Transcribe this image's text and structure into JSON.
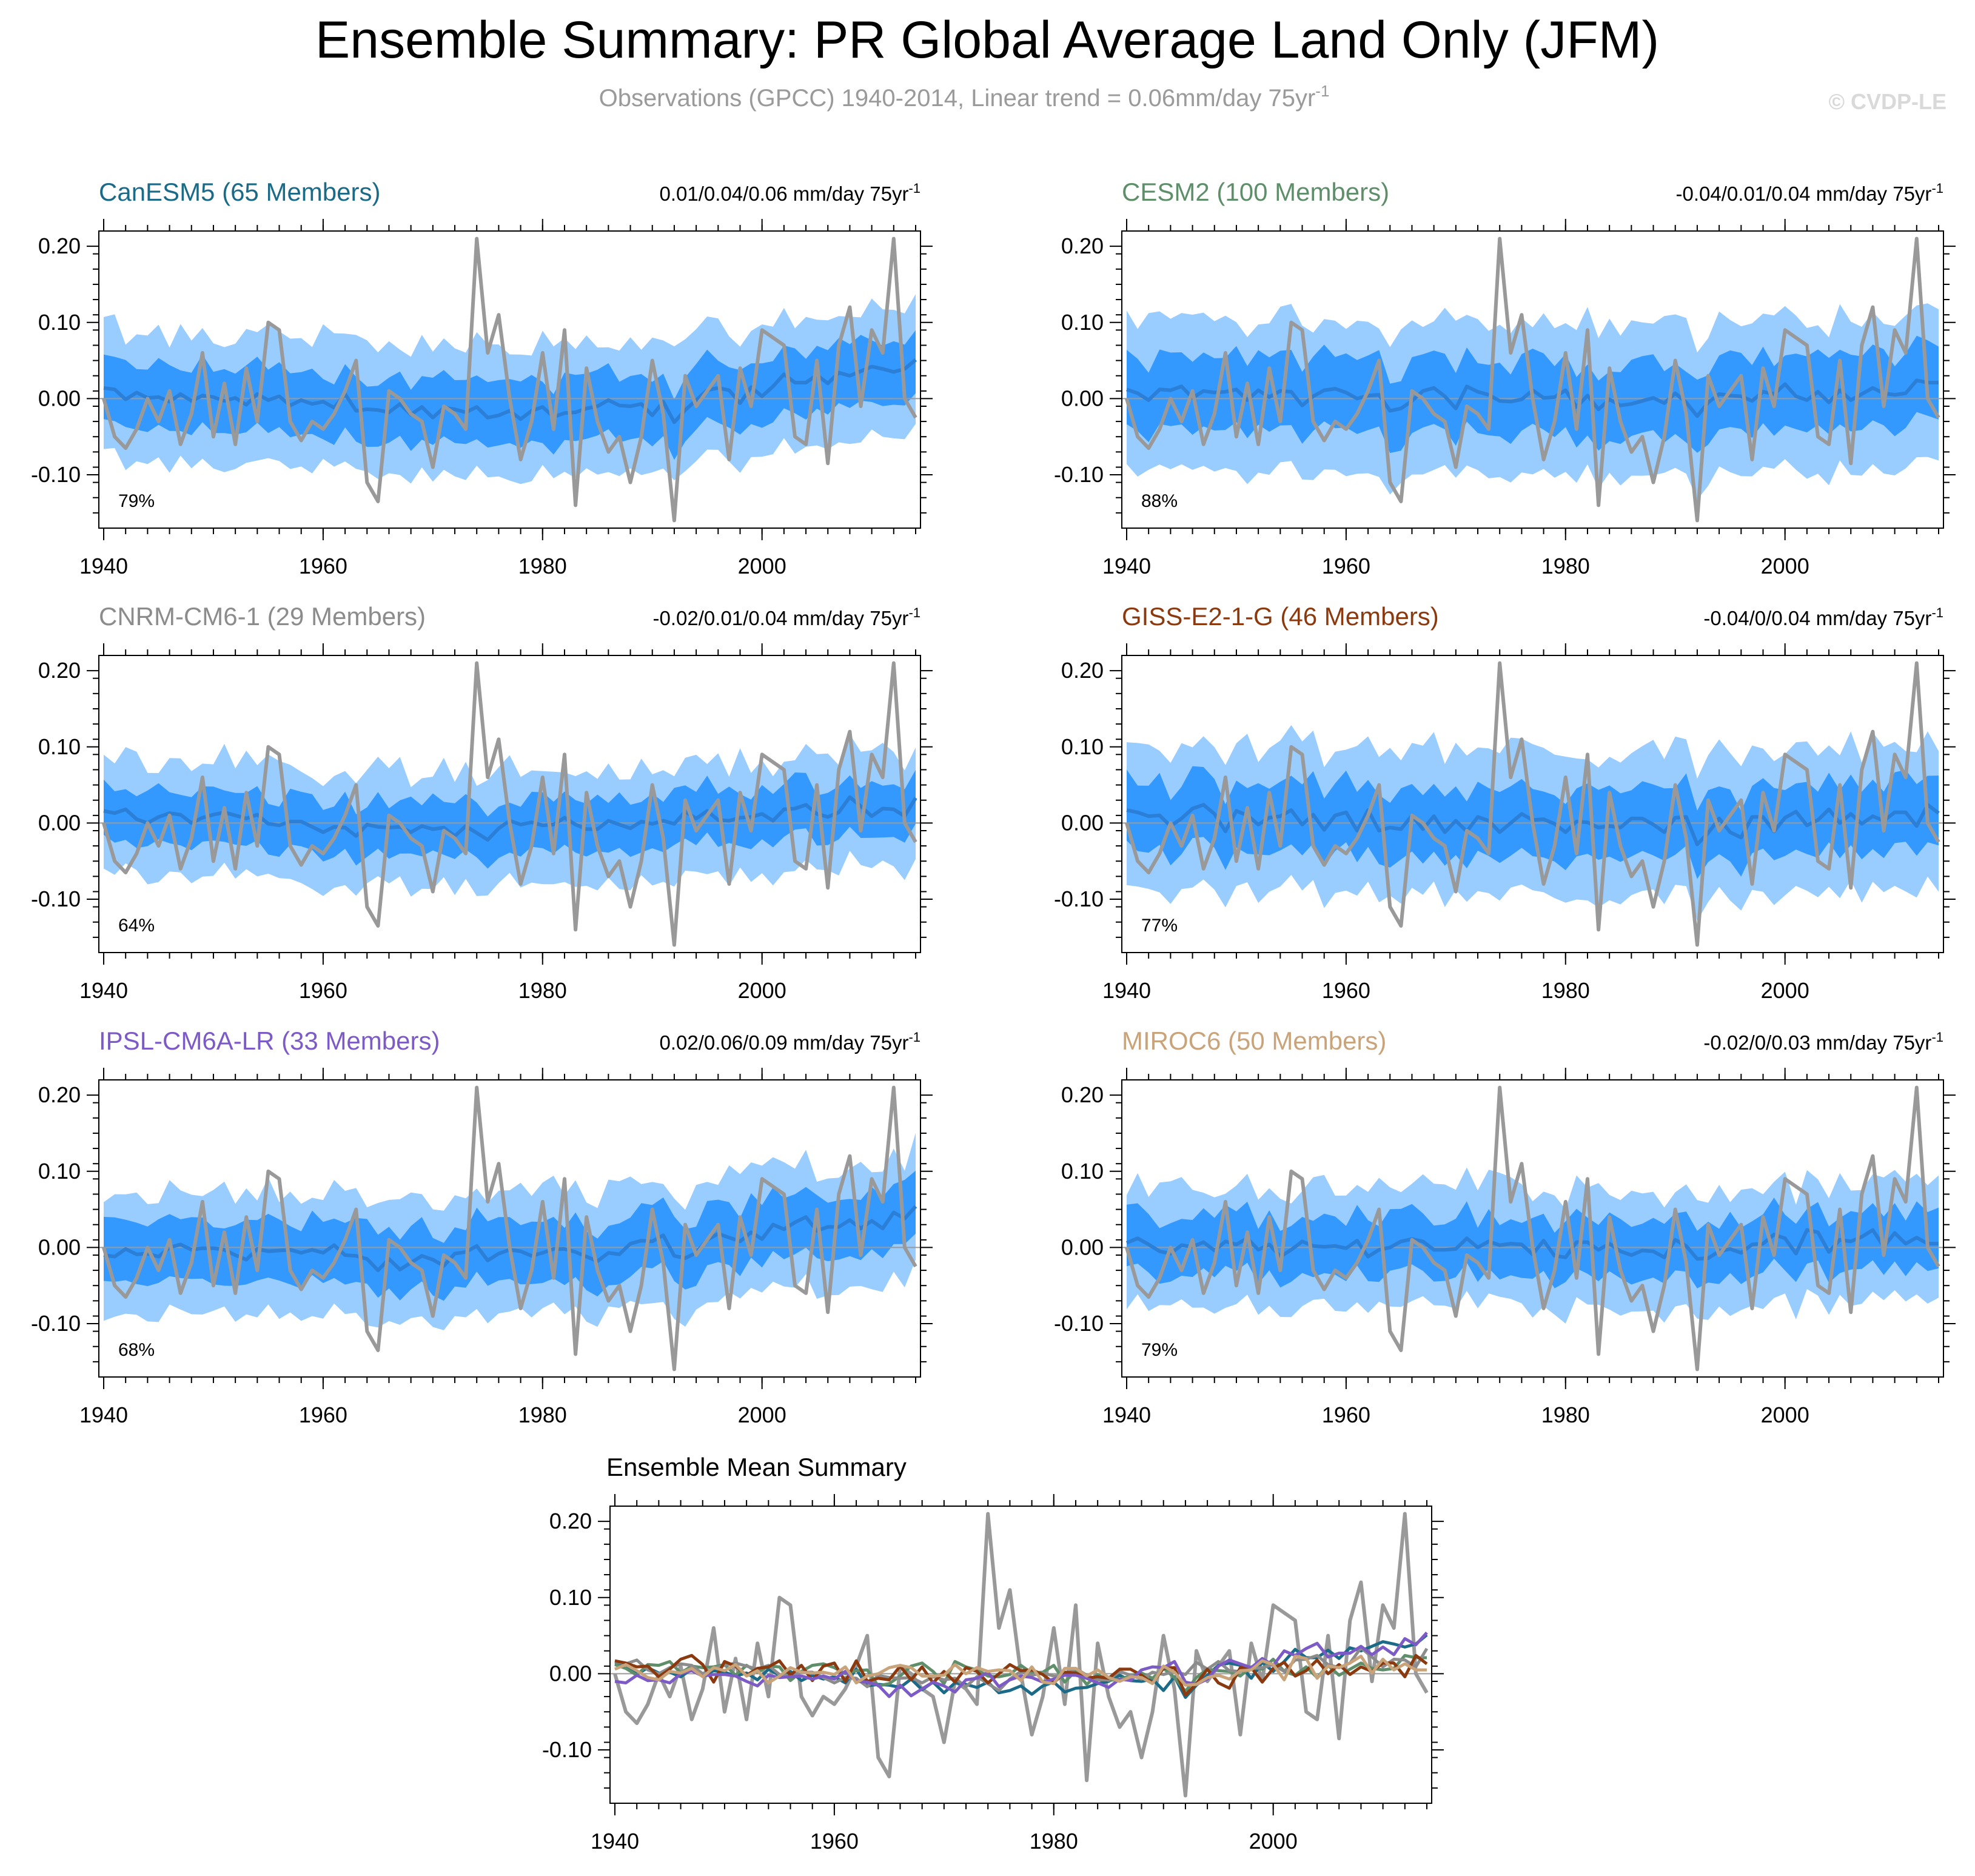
{
  "title": "Ensemble Summary: PR Global Average Land Only (JFM)",
  "subtitle": {
    "main": "Observations (GPCC) 1940-2014, Linear trend = 0.06mm/day 75yr",
    "sup": "-1"
  },
  "watermark": "© CVDP-LE",
  "colors": {
    "band_outer": "#99ccff",
    "band_inner": "#3399ff",
    "ensemble_mean": "#2b7fd6",
    "observations": "#999999",
    "zero_line": "#9a9a9a"
  },
  "chart_data": [
    {
      "type": "area",
      "title": "CanESM5 (65 Members)",
      "title_color": "#1b6a87",
      "trend_text": "0.01/0.04/0.06 mm/day 75yr",
      "trend_sup": "-1",
      "percent_label": "79%",
      "xlim": [
        1940,
        2014
      ],
      "ylim": [
        -0.17,
        0.22
      ],
      "xticks": [
        "1940",
        "1960",
        "1980",
        "2000"
      ],
      "yticks": [
        "0.20",
        "0.10",
        "0.00",
        "-0.10"
      ],
      "mean_start": 0.012,
      "mean_end": 0.05,
      "inner_halfwidth": 0.042,
      "outer_halfwidth": 0.085
    },
    {
      "type": "area",
      "title": "CESM2 (100 Members)",
      "title_color": "#5f8f6a",
      "trend_text": "-0.04/0.01/0.04 mm/day 75yr",
      "trend_sup": "-1",
      "percent_label": "88%",
      "xlim": [
        1940,
        2014
      ],
      "ylim": [
        -0.17,
        0.22
      ],
      "xticks": [
        "1940",
        "1960",
        "1980",
        "2000"
      ],
      "yticks": [
        "0.20",
        "0.10",
        "0.00",
        "-0.10"
      ],
      "mean_start": 0.008,
      "mean_end": 0.025,
      "inner_halfwidth": 0.048,
      "outer_halfwidth": 0.1
    },
    {
      "type": "area",
      "title": "CNRM-CM6-1 (29 Members)",
      "title_color": "#8c8c8c",
      "trend_text": "-0.02/0.01/0.04 mm/day 75yr",
      "trend_sup": "-1",
      "percent_label": "64%",
      "xlim": [
        1940,
        2014
      ],
      "ylim": [
        -0.17,
        0.22
      ],
      "xticks": [
        "1940",
        "1960",
        "1980",
        "2000"
      ],
      "yticks": [
        "0.20",
        "0.10",
        "0.00",
        "-0.10"
      ],
      "mean_start": 0.012,
      "mean_end": 0.03,
      "inner_halfwidth": 0.035,
      "outer_halfwidth": 0.075
    },
    {
      "type": "area",
      "title": "GISS-E2-1-G (46 Members)",
      "title_color": "#8b3a0f",
      "trend_text": "-0.04/0/0.04 mm/day 75yr",
      "trend_sup": "-1",
      "percent_label": "77%",
      "xlim": [
        1940,
        2014
      ],
      "ylim": [
        -0.17,
        0.22
      ],
      "xticks": [
        "1940",
        "1960",
        "1980",
        "2000"
      ],
      "yticks": [
        "0.20",
        "0.10",
        "0.00",
        "-0.10"
      ],
      "mean_start": 0.012,
      "mean_end": 0.022,
      "inner_halfwidth": 0.045,
      "outer_halfwidth": 0.095
    },
    {
      "type": "area",
      "title": "IPSL-CM6A-LR (33 Members)",
      "title_color": "#7d5bc6",
      "trend_text": "0.02/0.06/0.09 mm/day 75yr",
      "trend_sup": "-1",
      "percent_label": "68%",
      "xlim": [
        1940,
        2014
      ],
      "ylim": [
        -0.17,
        0.22
      ],
      "xticks": [
        "1940",
        "1960",
        "1980",
        "2000"
      ],
      "yticks": [
        "0.20",
        "0.10",
        "0.00",
        "-0.10"
      ],
      "mean_start": -0.012,
      "mean_end": 0.055,
      "inner_halfwidth": 0.04,
      "outer_halfwidth": 0.08
    },
    {
      "type": "area",
      "title": "MIROC6 (50 Members)",
      "title_color": "#c9a37a",
      "trend_text": "-0.02/0/0.03 mm/day 75yr",
      "trend_sup": "-1",
      "percent_label": "79%",
      "xlim": [
        1940,
        2014
      ],
      "ylim": [
        -0.17,
        0.22
      ],
      "xticks": [
        "1940",
        "1960",
        "1980",
        "2000"
      ],
      "yticks": [
        "0.20",
        "0.10",
        "0.00",
        "-0.10"
      ],
      "mean_start": 0.002,
      "mean_end": 0.005,
      "inner_halfwidth": 0.038,
      "outer_halfwidth": 0.078
    },
    {
      "type": "line",
      "title": "Ensemble Mean Summary",
      "xlim": [
        1940,
        2014
      ],
      "ylim": [
        -0.17,
        0.22
      ],
      "xticks": [
        "1940",
        "1960",
        "1980",
        "2000"
      ],
      "yticks": [
        "0.20",
        "0.10",
        "0.00",
        "-0.10"
      ],
      "series_colors": [
        "#1b6a87",
        "#5f8f6a",
        "#8c8c8c",
        "#8b3a0f",
        "#7d5bc6",
        "#c9a37a"
      ]
    }
  ],
  "observations": {
    "name": "Observations (GPCC)",
    "years": [
      1940,
      2014
    ],
    "values": [
      0.0,
      -0.05,
      -0.065,
      -0.04,
      0.0,
      -0.03,
      0.01,
      -0.06,
      -0.02,
      0.06,
      -0.05,
      0.02,
      -0.06,
      0.04,
      -0.03,
      0.1,
      0.09,
      -0.03,
      -0.055,
      -0.03,
      -0.04,
      -0.02,
      0.01,
      0.05,
      -0.11,
      -0.135,
      0.01,
      0.0,
      -0.02,
      -0.03,
      -0.09,
      -0.01,
      -0.02,
      -0.04,
      0.21,
      0.06,
      0.11,
      0.0,
      -0.08,
      -0.03,
      0.06,
      -0.04,
      0.09,
      -0.14,
      0.04,
      -0.03,
      -0.07,
      -0.05,
      -0.11,
      -0.05,
      0.05,
      -0.02,
      -0.16,
      0.03,
      -0.01,
      0.01,
      0.03,
      -0.08,
      0.04,
      -0.01,
      0.09,
      0.08,
      0.07,
      -0.05,
      -0.06,
      0.05,
      -0.085,
      0.07,
      0.12,
      -0.01,
      0.09,
      0.06,
      0.21,
      0.0,
      -0.025
    ]
  },
  "summary_means": [
    [
      0.014,
      0.012,
      -0.001,
      0.008,
      0.001,
      0.002,
      -0.004,
      0.006,
      -0.003,
      0.004,
      0.002,
      -0.003,
      0.001,
      -0.008,
      0.006,
      -0.002,
      0.003,
      -0.009,
      -0.002,
      -0.007,
      -0.004,
      -0.012,
      0.006,
      -0.016,
      -0.014,
      -0.015,
      -0.018,
      -0.007,
      -0.021,
      -0.011,
      -0.025,
      -0.012,
      -0.014,
      -0.018,
      -0.011,
      -0.025,
      -0.022,
      -0.016,
      -0.027,
      -0.016,
      -0.011,
      -0.024,
      -0.019,
      -0.018,
      -0.013,
      -0.01,
      -0.002,
      -0.009,
      -0.01,
      -0.007,
      -0.022,
      -0.004,
      -0.031,
      -0.015,
      -0.002,
      0.011,
      0.014,
      0.011,
      -0.006,
      0.015,
      0.003,
      0.016,
      0.032,
      0.021,
      0.021,
      0.031,
      0.02,
      0.034,
      0.03,
      0.036,
      0.042,
      0.039,
      0.035,
      0.039,
      0.051
    ],
    [
      0.012,
      0.007,
      -0.002,
      0.012,
      0.011,
      0.016,
      0.001,
      0.01,
      0.008,
      0.009,
      0.012,
      -0.002,
      0.011,
      0.002,
      0.01,
      0.009,
      -0.009,
      0.003,
      0.011,
      0.013,
      0.008,
      0.0,
      0.004,
      0.005,
      -0.016,
      -0.013,
      -0.003,
      0.01,
      0.014,
      0.003,
      -0.013,
      0.016,
      0.009,
      0.005,
      -0.003,
      -0.004,
      -0.001,
      0.011,
      0.001,
      0.002,
      0.011,
      -0.011,
      0.004,
      -0.014,
      -0.001,
      -0.009,
      -0.007,
      -0.003,
      0.001,
      -0.006,
      0.007,
      -0.005,
      -0.023,
      -0.005,
      0.006,
      0.004,
      0.003,
      -0.003,
      0.009,
      0.006,
      0.019,
      0.003,
      -0.002,
      0.009,
      -0.005,
      0.011,
      -0.002,
      0.006,
      0.014,
      0.007,
      0.005,
      0.007,
      0.024,
      0.021,
      0.021
    ],
    [
      0.016,
      0.013,
      0.018,
      0.005,
      0.0,
      0.008,
      0.013,
      0.011,
      0.0,
      0.007,
      0.011,
      0.014,
      0.01,
      0.006,
      0.011,
      -0.001,
      -0.003,
      0.002,
      0.002,
      -0.005,
      -0.012,
      -0.005,
      -0.006,
      -0.017,
      -0.002,
      -0.005,
      -0.006,
      -0.005,
      -0.012,
      -0.004,
      -0.008,
      -0.006,
      -0.017,
      -0.004,
      -0.013,
      -0.022,
      -0.007,
      0.003,
      -0.002,
      0.001,
      -0.003,
      -0.002,
      0.007,
      -0.002,
      -0.008,
      -0.008,
      0.003,
      -0.002,
      -0.007,
      0.002,
      -0.001,
      0.003,
      -0.001,
      0.015,
      0.006,
      0.016,
      0.004,
      0.003,
      0.007,
      0.008,
      0.012,
      0.003,
      0.018,
      0.019,
      0.024,
      0.012,
      0.008,
      0.014,
      0.034,
      0.022,
      0.009,
      0.019,
      0.018,
      0.009,
      0.033
    ],
    [
      0.017,
      0.014,
      0.009,
      0.01,
      -0.004,
      0.006,
      0.019,
      0.024,
      0.012,
      -0.011,
      0.016,
      0.01,
      -0.002,
      0.007,
      0.009,
      0.017,
      -0.002,
      0.011,
      -0.009,
      0.01,
      0.014,
      -0.01,
      0.017,
      -0.01,
      -0.006,
      -0.008,
      0.01,
      -0.008,
      0.009,
      -0.012,
      0.003,
      -0.011,
      0.008,
      0.003,
      -0.012,
      0.0,
      0.012,
      0.004,
      0.005,
      -0.001,
      -0.012,
      0.002,
      0.001,
      -0.006,
      -0.004,
      -0.006,
      0.006,
      0.006,
      -0.002,
      -0.012,
      0.007,
      0.008,
      -0.028,
      -0.013,
      0.006,
      -0.012,
      -0.019,
      0.008,
      0.008,
      -0.011,
      0.007,
      0.015,
      -0.003,
      0.004,
      0.018,
      0.0,
      0.012,
      -0.001,
      0.009,
      0.003,
      0.014,
      0.014,
      -0.004,
      0.024,
      0.013
    ],
    [
      -0.01,
      -0.012,
      -0.002,
      -0.009,
      -0.008,
      -0.012,
      0.0,
      0.004,
      -0.003,
      -0.001,
      -0.001,
      -0.003,
      -0.01,
      -0.016,
      -0.002,
      -0.005,
      -0.004,
      -0.003,
      -0.007,
      -0.003,
      -0.007,
      0.003,
      -0.01,
      -0.011,
      -0.015,
      -0.03,
      -0.015,
      -0.029,
      -0.02,
      -0.011,
      -0.016,
      -0.024,
      -0.008,
      -0.006,
      0.002,
      -0.017,
      -0.008,
      -0.003,
      -0.005,
      -0.011,
      -0.007,
      -0.002,
      -0.002,
      -0.006,
      -0.012,
      -0.018,
      -0.007,
      -0.009,
      0.005,
      0.009,
      0.008,
      0.016,
      -0.011,
      -0.014,
      -0.007,
      0.01,
      0.018,
      0.013,
      0.008,
      0.02,
      0.011,
      0.03,
      0.024,
      0.033,
      0.04,
      0.022,
      0.027,
      0.027,
      0.036,
      0.025,
      0.035,
      0.025,
      0.046,
      0.038,
      0.054
    ],
    [
      0.006,
      0.012,
      0.004,
      -0.005,
      -0.008,
      0.003,
      0.001,
      0.007,
      -0.004,
      0.008,
      0.004,
      0.012,
      -0.003,
      0.004,
      -0.012,
      -0.003,
      0.008,
      0.002,
      0.001,
      0.002,
      -0.001,
      0.009,
      -0.012,
      -0.003,
      0.0,
      0.008,
      0.011,
      0.008,
      -0.003,
      -0.003,
      -0.002,
      0.012,
      0.0,
      0.008,
      0.003,
      0.005,
      0.004,
      -0.009,
      0.009,
      -0.011,
      -0.013,
      0.007,
      0.007,
      -0.003,
      0.005,
      -0.005,
      -0.01,
      -0.004,
      -0.005,
      -0.013,
      0.01,
      0.002,
      -0.015,
      -0.014,
      -0.005,
      -0.002,
      -0.007,
      0.004,
      0.005,
      0.017,
      0.012,
      -0.008,
      0.023,
      0.02,
      -0.006,
      0.01,
      0.008,
      0.014,
      0.023,
      0.001,
      0.019,
      0.005,
      0.013,
      0.005,
      0.005
    ]
  ]
}
